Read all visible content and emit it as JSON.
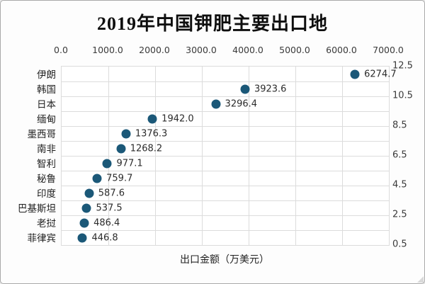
{
  "chart_data": {
    "type": "scatter",
    "title": "2019年中国钾肥主要出口地",
    "xlabel": "出口金额（万美元）",
    "ylabel": "",
    "categories": [
      "伊朗",
      "韩国",
      "日本",
      "缅甸",
      "墨西哥",
      "南非",
      "智利",
      "秘鲁",
      "印度",
      "巴基斯坦",
      "老挝",
      "菲律宾"
    ],
    "values": [
      6274.7,
      3923.6,
      3296.4,
      1942.0,
      1376.3,
      1268.2,
      977.1,
      759.7,
      587.6,
      537.5,
      486.4,
      446.8
    ],
    "value_labels": [
      "6274.7",
      "3923.6",
      "3296.4",
      "1942.0",
      "1376.3",
      "1268.2",
      "977.1",
      "759.7",
      "587.6",
      "537.5",
      "486.4",
      "446.8"
    ],
    "x_ticks": [
      0,
      1000,
      2000,
      3000,
      4000,
      5000,
      6000,
      7000
    ],
    "x_tick_labels": [
      "0.0",
      "1000.0",
      "2000.0",
      "3000.0",
      "4000.0",
      "5000.0",
      "6000.0",
      "7000.0"
    ],
    "xlim": [
      0,
      7000
    ],
    "right_y_tick_labels": [
      "12.5",
      "10.5",
      "8.5",
      "6.5",
      "4.5",
      "2.5",
      "0.5"
    ],
    "grid": true,
    "legend": false,
    "x_axis_position": "top",
    "colors": {
      "dot": "#1b5878",
      "gridline": "#dcdcdc",
      "text": "#2b2b2b",
      "title": "#0e0e0e",
      "frame_border": "#a9a9a9"
    }
  }
}
